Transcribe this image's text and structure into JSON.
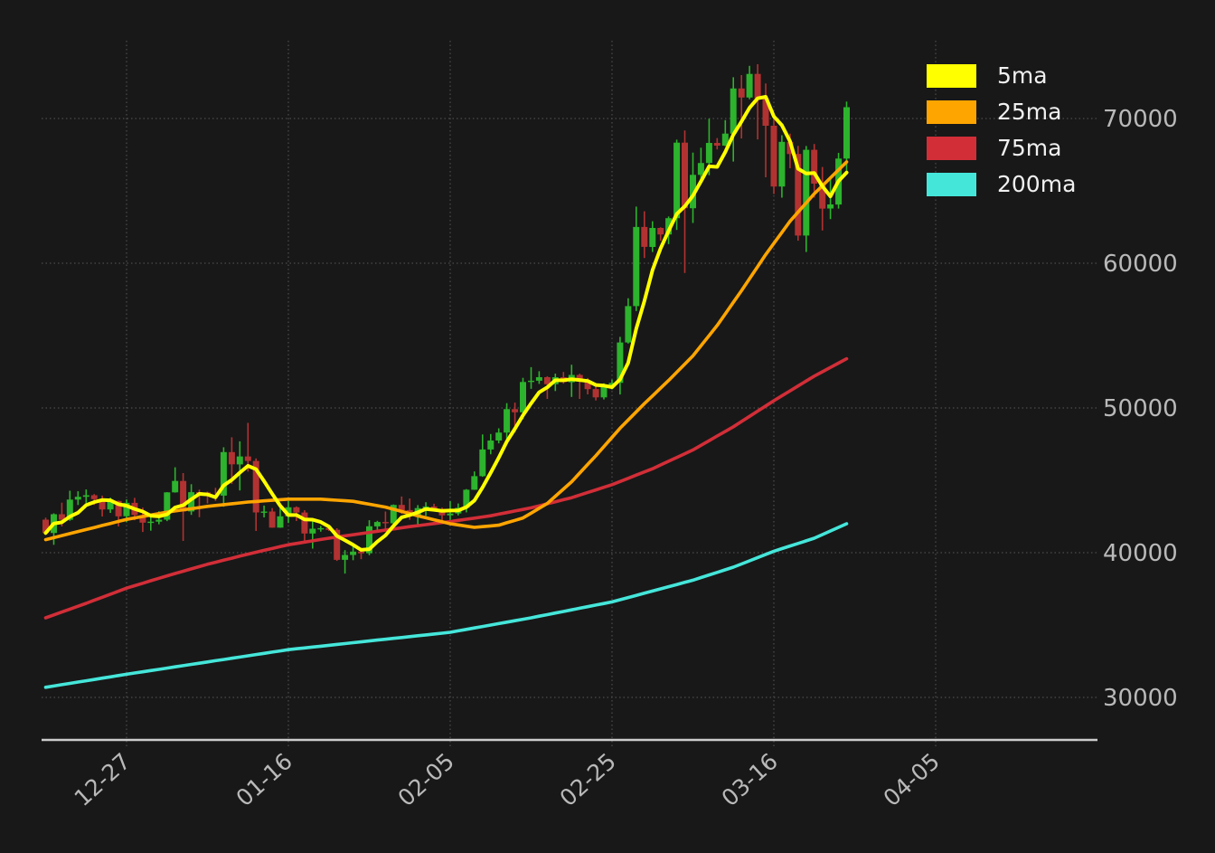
{
  "figure": {
    "background": "#181818",
    "grid_color": "#4c4c4c",
    "axis_line_color": "#cccccc",
    "tick_label_color": "#b9b9b9",
    "legend_text_color": "#f0f0f0"
  },
  "legend": {
    "items": [
      {
        "label": "5ma",
        "color": "#ffff00"
      },
      {
        "label": "25ma",
        "color": "#ffa500"
      },
      {
        "label": "75ma",
        "color": "#d22e38"
      },
      {
        "label": "200ma",
        "color": "#45e6da"
      }
    ]
  },
  "chart_data": {
    "type": "candlestick",
    "title": "",
    "grid": "dotted",
    "up_color": "#2db32d",
    "down_color": "#b23232",
    "y_axis": {
      "side": "right",
      "ticks": [
        30000,
        40000,
        50000,
        60000,
        70000
      ],
      "pixel_range_prices": [
        27060,
        75375
      ]
    },
    "x_axis": {
      "tick_labels": [
        "12-27",
        "01-16",
        "02-05",
        "02-25",
        "03-16",
        "04-05"
      ],
      "tick_indices": [
        10,
        30,
        50,
        70,
        90,
        110
      ],
      "label_rotation_deg": 42
    },
    "candle_columns": [
      "date",
      "open",
      "high",
      "low",
      "close"
    ],
    "candles": [
      [
        "12-17",
        42280,
        42420,
        41252,
        41364
      ],
      [
        "12-18",
        41364,
        42720,
        40542,
        42657
      ],
      [
        "12-19",
        42657,
        43455,
        41811,
        42275
      ],
      [
        "12-20",
        42275,
        44283,
        42206,
        43668
      ],
      [
        "12-21",
        43668,
        44242,
        43291,
        43861
      ],
      [
        "12-22",
        43861,
        44367,
        43442,
        43969
      ],
      [
        "12-23",
        43969,
        44050,
        43297,
        43702
      ],
      [
        "12-24",
        43702,
        43945,
        42500,
        42991
      ],
      [
        "12-25",
        42991,
        43804,
        42750,
        43576
      ],
      [
        "12-26",
        43576,
        43592,
        41815,
        42514
      ],
      [
        "12-27",
        42514,
        43677,
        42098,
        43442
      ],
      [
        "12-28",
        43442,
        43787,
        42241,
        42600
      ],
      [
        "12-29",
        42600,
        43111,
        41429,
        42074
      ],
      [
        "12-30",
        42074,
        42603,
        41520,
        42141
      ],
      [
        "12-31",
        42141,
        42861,
        41965,
        42280
      ],
      [
        "01-01",
        42280,
        44184,
        42180,
        44167
      ],
      [
        "01-02",
        44167,
        45899,
        44148,
        44957
      ],
      [
        "01-03",
        44957,
        45503,
        40813,
        42845
      ],
      [
        "01-04",
        42845,
        44729,
        42613,
        44179
      ],
      [
        "01-05",
        44179,
        44357,
        42450,
        44162
      ],
      [
        "01-06",
        44162,
        44216,
        43398,
        43989
      ],
      [
        "01-07",
        43989,
        44480,
        43572,
        43943
      ],
      [
        "01-08",
        43943,
        47281,
        43175,
        46951
      ],
      [
        "01-09",
        46951,
        47972,
        44748,
        46105
      ],
      [
        "01-10",
        46105,
        47695,
        44300,
        46653
      ],
      [
        "01-11",
        46653,
        48969,
        45606,
        46339
      ],
      [
        "01-12",
        46339,
        46515,
        41500,
        42782
      ],
      [
        "01-13",
        42782,
        43257,
        42436,
        42842
      ],
      [
        "01-14",
        42842,
        43079,
        41720,
        41732
      ],
      [
        "01-15",
        41732,
        43400,
        41718,
        42511
      ],
      [
        "01-16",
        42511,
        43578,
        42050,
        43137
      ],
      [
        "01-17",
        43137,
        43198,
        42189,
        42776
      ],
      [
        "01-18",
        42776,
        42930,
        40631,
        41327
      ],
      [
        "01-19",
        41327,
        42196,
        40280,
        41659
      ],
      [
        "01-20",
        41659,
        41852,
        41450,
        41696
      ],
      [
        "01-21",
        41696,
        41881,
        41500,
        41580
      ],
      [
        "01-22",
        41580,
        41689,
        39431,
        39507
      ],
      [
        "01-23",
        39507,
        40176,
        38555,
        39845
      ],
      [
        "01-24",
        39845,
        40555,
        39484,
        40077
      ],
      [
        "01-25",
        40077,
        40300,
        39550,
        39961
      ],
      [
        "01-26",
        39961,
        42246,
        39822,
        41823
      ],
      [
        "01-27",
        41823,
        42200,
        41394,
        42120
      ],
      [
        "01-28",
        42120,
        42842,
        41620,
        42031
      ],
      [
        "01-29",
        42031,
        43333,
        41804,
        43302
      ],
      [
        "01-30",
        43302,
        43882,
        42683,
        42941
      ],
      [
        "01-31",
        42941,
        43745,
        42276,
        42580
      ],
      [
        "02-01",
        42580,
        43285,
        41884,
        43082
      ],
      [
        "02-02",
        43082,
        43488,
        42546,
        43194
      ],
      [
        "02-03",
        43194,
        43379,
        42880,
        43011
      ],
      [
        "02-04",
        43011,
        43119,
        42222,
        42582
      ],
      [
        "02-05",
        42582,
        43559,
        42258,
        42708
      ],
      [
        "02-06",
        42708,
        43399,
        42574,
        43098
      ],
      [
        "02-07",
        43098,
        44396,
        42788,
        44349
      ],
      [
        "02-08",
        44349,
        45614,
        44335,
        45288
      ],
      [
        "02-09",
        45288,
        48170,
        45242,
        47132
      ],
      [
        "02-10",
        47132,
        48200,
        46800,
        47751
      ],
      [
        "02-11",
        47751,
        48592,
        47557,
        48299
      ],
      [
        "02-12",
        48299,
        50334,
        47710,
        49917
      ],
      [
        "02-13",
        49917,
        50368,
        48300,
        49699
      ],
      [
        "02-14",
        49699,
        52079,
        49225,
        51795
      ],
      [
        "02-15",
        51795,
        52816,
        51319,
        51880
      ],
      [
        "02-16",
        51880,
        52537,
        51662,
        52124
      ],
      [
        "02-17",
        52124,
        52191,
        50625,
        51642
      ],
      [
        "02-18",
        51642,
        52377,
        51166,
        52122
      ],
      [
        "02-19",
        52122,
        52488,
        51677,
        51779
      ],
      [
        "02-20",
        51779,
        52985,
        50760,
        52284
      ],
      [
        "02-21",
        52284,
        52367,
        50625,
        51839
      ],
      [
        "02-22",
        51839,
        52067,
        50940,
        51304
      ],
      [
        "02-23",
        51304,
        51541,
        50521,
        50731
      ],
      [
        "02-24",
        50731,
        51698,
        50585,
        51571
      ],
      [
        "02-25",
        51571,
        51958,
        51279,
        51733
      ],
      [
        "02-26",
        51733,
        54910,
        50931,
        54522
      ],
      [
        "02-27",
        54522,
        57583,
        54450,
        57037
      ],
      [
        "02-28",
        57037,
        63913,
        56691,
        62504
      ],
      [
        "02-29",
        62504,
        63585,
        60364,
        61130
      ],
      [
        "03-01",
        61130,
        62900,
        60777,
        62440
      ],
      [
        "03-02",
        62440,
        62481,
        61554,
        61987
      ],
      [
        "03-03",
        61987,
        63231,
        61320,
        63113
      ],
      [
        "03-04",
        63113,
        68537,
        62300,
        68330
      ],
      [
        "03-05",
        68330,
        69170,
        59323,
        63801
      ],
      [
        "03-06",
        63801,
        67641,
        62779,
        66106
      ],
      [
        "03-07",
        66106,
        67980,
        65600,
        66925
      ],
      [
        "03-08",
        66925,
        69990,
        66082,
        68313
      ],
      [
        "03-09",
        68313,
        68650,
        67861,
        68124
      ],
      [
        "03-10",
        68124,
        69887,
        68094,
        68955
      ],
      [
        "03-11",
        68955,
        72850,
        67024,
        72078
      ],
      [
        "03-12",
        72078,
        73000,
        68620,
        71452
      ],
      [
        "03-13",
        71452,
        73637,
        71333,
        73083
      ],
      [
        "03-14",
        73083,
        73750,
        68555,
        71388
      ],
      [
        "03-15",
        71388,
        72419,
        65937,
        69499
      ],
      [
        "03-16",
        69499,
        70043,
        64780,
        65300
      ],
      [
        "03-17",
        65300,
        68845,
        64533,
        68390
      ],
      [
        "03-18",
        68390,
        68955,
        66565,
        67548
      ],
      [
        "03-19",
        67548,
        68107,
        61555,
        61912
      ],
      [
        "03-20",
        61912,
        68100,
        60775,
        67840
      ],
      [
        "03-21",
        67840,
        68240,
        64529,
        65501
      ],
      [
        "03-22",
        65501,
        66649,
        62260,
        63778
      ],
      [
        "03-23",
        63778,
        65999,
        63052,
        64062
      ],
      [
        "03-24",
        64062,
        67628,
        63772,
        67234
      ],
      [
        "03-25",
        67234,
        71166,
        66385,
        70784
      ]
    ],
    "moving_averages": [
      {
        "name": "5ma",
        "color": "#ffff00",
        "width": 4,
        "computed_from_closes": true,
        "window": 5
      },
      {
        "name": "25ma",
        "color": "#ffa500",
        "width": 3.6,
        "points": [
          [
            0,
            40900
          ],
          [
            5,
            41600
          ],
          [
            10,
            42300
          ],
          [
            15,
            42800
          ],
          [
            20,
            43200
          ],
          [
            25,
            43500
          ],
          [
            30,
            43700
          ],
          [
            34,
            43700
          ],
          [
            38,
            43550
          ],
          [
            42,
            43150
          ],
          [
            46,
            42550
          ],
          [
            50,
            42000
          ],
          [
            53,
            41750
          ],
          [
            56,
            41900
          ],
          [
            59,
            42400
          ],
          [
            62,
            43400
          ],
          [
            65,
            44900
          ],
          [
            68,
            46700
          ],
          [
            71,
            48600
          ],
          [
            74,
            50300
          ],
          [
            77,
            51900
          ],
          [
            80,
            53600
          ],
          [
            83,
            55700
          ],
          [
            86,
            58100
          ],
          [
            89,
            60600
          ],
          [
            92,
            62900
          ],
          [
            95,
            64800
          ],
          [
            97,
            65900
          ],
          [
            99,
            67000
          ]
        ]
      },
      {
        "name": "75ma",
        "color": "#d22e38",
        "width": 3.6,
        "points": [
          [
            0,
            35500
          ],
          [
            5,
            36500
          ],
          [
            10,
            37550
          ],
          [
            15,
            38400
          ],
          [
            20,
            39200
          ],
          [
            25,
            39900
          ],
          [
            30,
            40550
          ],
          [
            35,
            41000
          ],
          [
            40,
            41400
          ],
          [
            45,
            41800
          ],
          [
            50,
            42150
          ],
          [
            55,
            42550
          ],
          [
            60,
            43100
          ],
          [
            65,
            43800
          ],
          [
            70,
            44700
          ],
          [
            75,
            45800
          ],
          [
            80,
            47100
          ],
          [
            85,
            48700
          ],
          [
            90,
            50500
          ],
          [
            95,
            52200
          ],
          [
            99,
            53400
          ]
        ]
      },
      {
        "name": "200ma",
        "color": "#45e6da",
        "width": 3.6,
        "points": [
          [
            0,
            30700
          ],
          [
            10,
            31600
          ],
          [
            20,
            32450
          ],
          [
            30,
            33300
          ],
          [
            40,
            33900
          ],
          [
            50,
            34500
          ],
          [
            60,
            35500
          ],
          [
            70,
            36600
          ],
          [
            80,
            38100
          ],
          [
            85,
            39000
          ],
          [
            90,
            40100
          ],
          [
            95,
            41000
          ],
          [
            99,
            42000
          ]
        ]
      }
    ]
  }
}
